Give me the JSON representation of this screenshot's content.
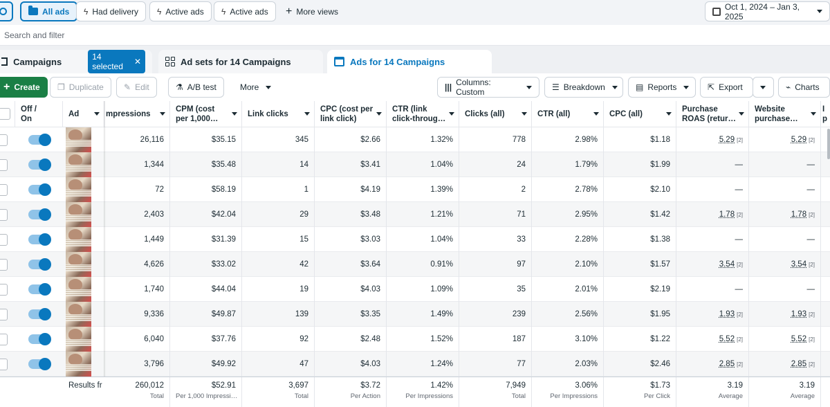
{
  "views": {
    "all_ads": "All ads",
    "had_delivery": "Had delivery",
    "active_ads_1": "Active ads",
    "active_ads_2": "Active ads",
    "more_views": "More views",
    "date_range": "Oct 1, 2024 – Jan 3, 2025"
  },
  "search": {
    "placeholder": "Search and filter"
  },
  "levels": {
    "campaigns": "Campaigns",
    "selected": "14 selected",
    "adsets": "Ad sets for 14 Campaigns",
    "ads": "Ads for 14 Campaigns"
  },
  "toolbar": {
    "create": "Create",
    "duplicate": "Duplicate",
    "edit": "Edit",
    "ab_test": "A/B test",
    "more": "More",
    "columns": "Columns: Custom",
    "breakdown": "Breakdown",
    "reports": "Reports",
    "export": "Export",
    "charts": "Charts"
  },
  "headers": {
    "offon": "Off / On",
    "ad": "Ad",
    "impressions": "mpressions",
    "cpm": "CPM (cost per 1,000…",
    "link_clicks": "Link clicks",
    "cpc_link": "CPC (cost per link click)",
    "ctr_link": "CTR (link click-throug…",
    "clicks_all": "Clicks (all)",
    "ctr_all": "CTR (all)",
    "cpc_all": "CPC (all)",
    "purchase_roas": "Purchase ROAS (retur…",
    "website_purchase": "Website purchase…",
    "extra": "I p"
  },
  "rows": [
    {
      "impressions": "26,116",
      "cpm": "$35.15",
      "link_clicks": "345",
      "cpc_link": "$2.66",
      "ctr_link": "1.32%",
      "clicks_all": "778",
      "ctr_all": "2.98%",
      "cpc_all": "$1.18",
      "roas": "5.29",
      "web": "5.29"
    },
    {
      "impressions": "1,344",
      "cpm": "$35.48",
      "link_clicks": "14",
      "cpc_link": "$3.41",
      "ctr_link": "1.04%",
      "clicks_all": "24",
      "ctr_all": "1.79%",
      "cpc_all": "$1.99",
      "roas": "—",
      "web": "—"
    },
    {
      "impressions": "72",
      "cpm": "$58.19",
      "link_clicks": "1",
      "cpc_link": "$4.19",
      "ctr_link": "1.39%",
      "clicks_all": "2",
      "ctr_all": "2.78%",
      "cpc_all": "$2.10",
      "roas": "—",
      "web": "—"
    },
    {
      "impressions": "2,403",
      "cpm": "$42.04",
      "link_clicks": "29",
      "cpc_link": "$3.48",
      "ctr_link": "1.21%",
      "clicks_all": "71",
      "ctr_all": "2.95%",
      "cpc_all": "$1.42",
      "roas": "1.78",
      "web": "1.78"
    },
    {
      "impressions": "1,449",
      "cpm": "$31.39",
      "link_clicks": "15",
      "cpc_link": "$3.03",
      "ctr_link": "1.04%",
      "clicks_all": "33",
      "ctr_all": "2.28%",
      "cpc_all": "$1.38",
      "roas": "—",
      "web": "—"
    },
    {
      "impressions": "4,626",
      "cpm": "$33.02",
      "link_clicks": "42",
      "cpc_link": "$3.64",
      "ctr_link": "0.91%",
      "clicks_all": "97",
      "ctr_all": "2.10%",
      "cpc_all": "$1.57",
      "roas": "3.54",
      "web": "3.54"
    },
    {
      "impressions": "1,740",
      "cpm": "$44.04",
      "link_clicks": "19",
      "cpc_link": "$4.03",
      "ctr_link": "1.09%",
      "clicks_all": "35",
      "ctr_all": "2.01%",
      "cpc_all": "$2.19",
      "roas": "—",
      "web": "—"
    },
    {
      "impressions": "9,336",
      "cpm": "$49.87",
      "link_clicks": "139",
      "cpc_link": "$3.35",
      "ctr_link": "1.49%",
      "clicks_all": "239",
      "ctr_all": "2.56%",
      "cpc_all": "$1.95",
      "roas": "1.93",
      "web": "1.93"
    },
    {
      "impressions": "6,040",
      "cpm": "$37.76",
      "link_clicks": "92",
      "cpc_link": "$2.48",
      "ctr_link": "1.52%",
      "clicks_all": "187",
      "ctr_all": "3.10%",
      "cpc_all": "$1.22",
      "roas": "5.52",
      "web": "5.52"
    },
    {
      "impressions": "3,796",
      "cpm": "$49.92",
      "link_clicks": "47",
      "cpc_link": "$4.03",
      "ctr_link": "1.24%",
      "clicks_all": "77",
      "ctr_all": "2.03%",
      "cpc_all": "$2.46",
      "roas": "2.85",
      "web": "2.85"
    }
  ],
  "footnote_marker": "[2]",
  "footer": {
    "results": "Results fr",
    "impressions": {
      "v": "260,012",
      "s": "Total"
    },
    "cpm": {
      "v": "$52.91",
      "s": "Per 1,000 Impressi…"
    },
    "link_clicks": {
      "v": "3,697",
      "s": "Total"
    },
    "cpc_link": {
      "v": "$3.72",
      "s": "Per Action"
    },
    "ctr_link": {
      "v": "1.42%",
      "s": "Per Impressions"
    },
    "clicks_all": {
      "v": "7,949",
      "s": "Total"
    },
    "ctr_all": {
      "v": "3.06%",
      "s": "Per Impressions"
    },
    "cpc_all": {
      "v": "$1.73",
      "s": "Per Click"
    },
    "roas": {
      "v": "3.19",
      "s": "Average"
    },
    "web": {
      "v": "3.19",
      "s": "Average"
    }
  }
}
